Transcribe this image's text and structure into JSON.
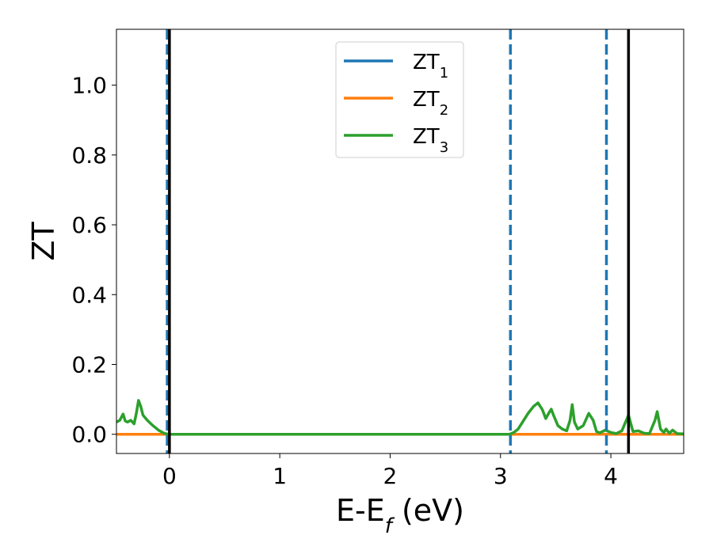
{
  "chart_data": {
    "type": "line",
    "xlabel_main": "E-E",
    "xlabel_sub": "f",
    "xlabel_unit": " (eV)",
    "ylabel": "ZT",
    "xlim": [
      -0.48,
      4.66
    ],
    "ylim": [
      -0.055,
      1.16
    ],
    "xticks": [
      0,
      1,
      2,
      3,
      4
    ],
    "xtick_labels": [
      "0",
      "1",
      "2",
      "3",
      "4"
    ],
    "yticks": [
      0.0,
      0.2,
      0.4,
      0.6,
      0.8,
      1.0
    ],
    "ytick_labels": [
      "0.0",
      "0.2",
      "0.4",
      "0.6",
      "0.8",
      "1.0"
    ],
    "grid": false,
    "legend_position": "top-center",
    "series": [
      {
        "name": "ZT",
        "name_sub": "1",
        "color": "#1f77b4",
        "x": [
          -0.48,
          4.66
        ],
        "y": [
          0.0,
          0.0
        ]
      },
      {
        "name": "ZT",
        "name_sub": "2",
        "color": "#ff7f0e",
        "x": [
          -0.48,
          4.66
        ],
        "y": [
          0.0,
          0.0
        ]
      },
      {
        "name": "ZT",
        "name_sub": "3",
        "color": "#2ca02c",
        "x": [
          -0.48,
          -0.45,
          -0.42,
          -0.4,
          -0.38,
          -0.35,
          -0.32,
          -0.3,
          -0.28,
          -0.26,
          -0.24,
          -0.2,
          -0.15,
          -0.1,
          -0.05,
          -0.02,
          0.0,
          0.5,
          1.0,
          1.5,
          2.0,
          2.5,
          3.0,
          3.08,
          3.12,
          3.16,
          3.2,
          3.25,
          3.3,
          3.34,
          3.38,
          3.41,
          3.44,
          3.46,
          3.48,
          3.52,
          3.56,
          3.6,
          3.63,
          3.65,
          3.67,
          3.7,
          3.75,
          3.8,
          3.84,
          3.87,
          3.9,
          3.95,
          4.0,
          4.05,
          4.1,
          4.16,
          4.2,
          4.25,
          4.3,
          4.35,
          4.4,
          4.42,
          4.45,
          4.48,
          4.5,
          4.53,
          4.56,
          4.6,
          4.66
        ],
        "y": [
          0.035,
          0.04,
          0.058,
          0.038,
          0.035,
          0.04,
          0.03,
          0.06,
          0.097,
          0.08,
          0.055,
          0.04,
          0.025,
          0.012,
          0.003,
          0.001,
          0.0,
          0.0,
          0.0,
          0.0,
          0.0,
          0.0,
          0.0,
          0.0,
          0.005,
          0.015,
          0.035,
          0.06,
          0.08,
          0.09,
          0.07,
          0.045,
          0.062,
          0.072,
          0.055,
          0.025,
          0.015,
          0.01,
          0.04,
          0.085,
          0.035,
          0.015,
          0.025,
          0.06,
          0.04,
          0.008,
          0.004,
          0.012,
          0.005,
          0.002,
          0.01,
          0.055,
          0.008,
          0.01,
          0.003,
          0.002,
          0.04,
          0.065,
          0.015,
          0.005,
          0.015,
          0.003,
          0.012,
          0.002,
          0.001
        ]
      }
    ],
    "vlines": [
      {
        "x": -0.02,
        "style": "dashed",
        "color": "#1f77b4"
      },
      {
        "x": 0.0,
        "style": "solid",
        "color": "#000000"
      },
      {
        "x": 3.09,
        "style": "dashed",
        "color": "#1f77b4"
      },
      {
        "x": 3.96,
        "style": "dashed",
        "color": "#1f77b4"
      },
      {
        "x": 4.16,
        "style": "solid",
        "color": "#000000"
      }
    ]
  }
}
